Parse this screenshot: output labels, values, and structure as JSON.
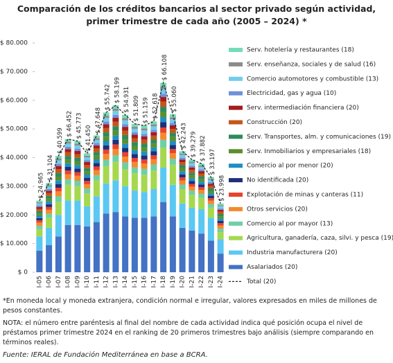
{
  "chart_data": {
    "type": "stacked-bar",
    "title": "Comparación de los créditos bancarios al sector privado según actividad, primer trimestre de cada año (2005 – 2024) *",
    "categories": [
      "I-05",
      "I-06",
      "I-07",
      "I-08",
      "I-09",
      "I-10",
      "I-11",
      "I-12",
      "I-13",
      "I-14",
      "I-15",
      "I-16",
      "I-17",
      "I-18",
      "I-19",
      "I-20",
      "I-21",
      "I-22",
      "I-23",
      "I-24"
    ],
    "ylim": [
      0,
      80000
    ],
    "yticks": [
      {
        "value": 0,
        "label": "$ 0"
      },
      {
        "value": 10000,
        "label": "$ 10.000"
      },
      {
        "value": 20000,
        "label": "$ 20.000"
      },
      {
        "value": 30000,
        "label": "$ 30.000"
      },
      {
        "value": 40000,
        "label": "$ 40.000"
      },
      {
        "value": 50000,
        "label": "$ 50.000"
      },
      {
        "value": 60000,
        "label": "$ 60.000"
      },
      {
        "value": 70000,
        "label": "$ 70.000"
      },
      {
        "value": 80000,
        "label": "$ 80.000"
      }
    ],
    "series": [
      {
        "name": "Asalariados (20)",
        "color": "#4472c4",
        "values": [
          7500,
          9500,
          12500,
          16500,
          16500,
          16000,
          17500,
          20500,
          21000,
          19500,
          19000,
          19000,
          19500,
          24500,
          19500,
          15500,
          14500,
          13500,
          11000,
          6500
        ]
      },
      {
        "name": "Industria manufacturera (20)",
        "color": "#5ac8f2",
        "values": [
          5000,
          6000,
          7500,
          8500,
          8500,
          7000,
          9000,
          10500,
          11000,
          10500,
          9500,
          9000,
          9500,
          12000,
          11000,
          8500,
          8000,
          8500,
          8000,
          5000
        ]
      },
      {
        "name": "Agricultura, ganadería, caza, silvi. y pesca (19)",
        "color": "#a6d84f",
        "values": [
          2500,
          3500,
          4500,
          5500,
          5000,
          4500,
          5500,
          6000,
          6500,
          6000,
          6000,
          6000,
          6500,
          7000,
          7000,
          5000,
          4500,
          4000,
          3500,
          2500
        ]
      },
      {
        "name": "Comercio al por mayor (13)",
        "color": "#6fcfa6",
        "values": [
          1200,
          1450,
          1930,
          1920,
          1900,
          1680,
          1880,
          2240,
          2360,
          2270,
          2080,
          2060,
          2050,
          2710,
          2110,
          1580,
          1480,
          1430,
          1280,
          1200
        ]
      },
      {
        "name": "Otros servicios (20)",
        "color": "#f4892e",
        "values": [
          1100,
          1330,
          1770,
          1760,
          1740,
          1540,
          1730,
          2060,
          2170,
          2080,
          1900,
          1890,
          1880,
          2490,
          1940,
          1450,
          1350,
          1310,
          1180,
          1100
        ]
      },
      {
        "name": "Explotación de minas y canteras (11)",
        "color": "#e8432e",
        "values": [
          800,
          970,
          1290,
          1280,
          1260,
          1120,
          1260,
          1500,
          1580,
          1510,
          1380,
          1380,
          1370,
          1810,
          1410,
          1060,
          980,
          950,
          860,
          800
        ]
      },
      {
        "name": "No identificada (20)",
        "color": "#1f2f78",
        "values": [
          800,
          970,
          1290,
          1280,
          1260,
          1120,
          1260,
          1500,
          1580,
          1510,
          1380,
          1380,
          1370,
          1810,
          1410,
          1060,
          980,
          950,
          860,
          800
        ]
      },
      {
        "name": "Comercio al por menor (20)",
        "color": "#1f8fc2",
        "values": [
          800,
          970,
          1290,
          1280,
          1260,
          1120,
          1260,
          1500,
          1580,
          1510,
          1380,
          1380,
          1370,
          1810,
          1410,
          1060,
          980,
          950,
          860,
          800
        ]
      },
      {
        "name": "Serv. Inmobiliarios y empresariales (18)",
        "color": "#5a8f2c",
        "values": [
          800,
          970,
          1290,
          1280,
          1260,
          1120,
          1260,
          1500,
          1580,
          1510,
          1380,
          1380,
          1370,
          1810,
          1410,
          1060,
          980,
          950,
          860,
          800
        ]
      },
      {
        "name": "Serv. Transportes, alm. y comunicaciones (19)",
        "color": "#2e8a5c",
        "values": [
          800,
          970,
          1290,
          1280,
          1260,
          1120,
          1260,
          1500,
          1580,
          1510,
          1380,
          1380,
          1370,
          1810,
          1410,
          1060,
          980,
          950,
          860,
          800
        ]
      },
      {
        "name": "Construcción (20)",
        "color": "#c4561a",
        "values": [
          800,
          970,
          1290,
          1280,
          1260,
          1120,
          1260,
          1500,
          1580,
          1510,
          1380,
          1380,
          1370,
          1810,
          1410,
          1060,
          980,
          950,
          860,
          800
        ]
      },
      {
        "name": "Serv. intermediación financiera  (20)",
        "color": "#a31d1d",
        "values": [
          700,
          850,
          1130,
          1120,
          1110,
          980,
          1100,
          1310,
          1380,
          1320,
          1210,
          1200,
          1200,
          1580,
          1230,
          920,
          860,
          830,
          750,
          700
        ]
      },
      {
        "name": "Electricidad, gas y agua (10)",
        "color": "#7090da",
        "values": [
          500,
          600,
          800,
          800,
          790,
          700,
          790,
          940,
          990,
          950,
          870,
          860,
          860,
          1130,
          880,
          660,
          620,
          600,
          540,
          500
        ]
      },
      {
        "name": "Comercio automotores y combustible (13)",
        "color": "#72cdea",
        "values": [
          700,
          850,
          1130,
          1120,
          1110,
          980,
          1100,
          1310,
          1380,
          1320,
          1210,
          1200,
          1200,
          1580,
          1230,
          920,
          860,
          830,
          750,
          700
        ]
      },
      {
        "name": "Serv. enseñanza, sociales y de salud (16)",
        "color": "#8c8c8c",
        "values": [
          400,
          480,
          640,
          640,
          630,
          560,
          630,
          750,
          790,
          760,
          690,
          690,
          680,
          900,
          700,
          530,
          490,
          480,
          430,
          400
        ]
      },
      {
        "name": "Serv. hotelería y restaurantes  (18)",
        "color": "#74dcb6",
        "values": [
          600,
          730,
          970,
          960,
          950,
          840,
          940,
          1120,
          1180,
          1130,
          1040,
          1030,
          1030,
          1360,
          1060,
          790,
          740,
          710,
          640,
          600
        ]
      }
    ],
    "total": {
      "name": "Total (20)",
      "color": "#222222",
      "values": [
        24965,
        31104,
        40599,
        46452,
        45773,
        41450,
        47648,
        55742,
        58199,
        54931,
        51809,
        51159,
        52618,
        66108,
        55060,
        42243,
        39279,
        37882,
        33197,
        23998
      ],
      "value_labels": [
        "$ 24.965",
        "$ 31.104",
        "$ 40.599",
        "$ 46.452",
        "$ 45.773",
        "$ 41.450",
        "$ 47.648",
        "$ 55.742",
        "$ 58.199",
        "$ 54.931",
        "$ 51.809",
        "$ 51.159",
        "$ 52.618",
        "$ 66.108",
        "$ 55.060",
        "$ 42.243",
        "$ 39.279",
        "$ 37.882",
        "$ 33.197",
        "$ 23.998"
      ]
    },
    "notes": [
      "*En moneda local y moneda extranjera, condición normal e irregular, valores expresados en miles de millones de pesos constantes.",
      "NOTA: el número entre paréntesis al final del nombre de cada actividad indica qué posición ocupa el nivel de préstamos primer trimestre 2024 en el ranking de 20 primeros trimestres bajo análisis (siempre comparando en términos reales)."
    ],
    "source": "Fuente: IERAL de Fundación Mediterránea en base a BCRA."
  }
}
